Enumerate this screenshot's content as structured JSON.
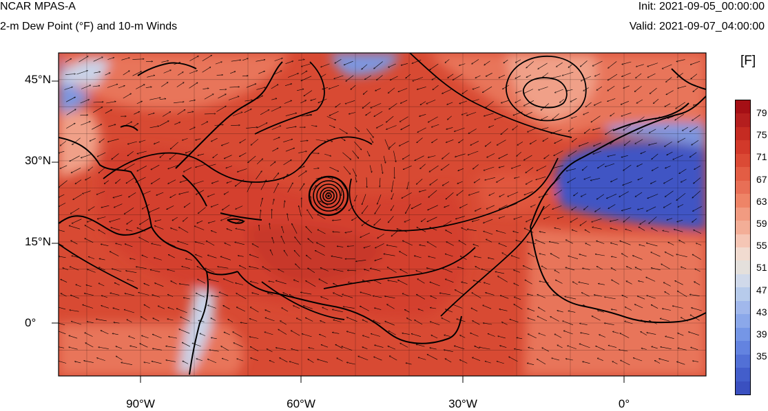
{
  "header": {
    "title": "NCAR MPAS-A",
    "subtitle": "2-m Dew Point (°F) and 10-m Winds",
    "init": "Init: 2021-09-05_00:00:00",
    "valid": "Valid: 2021-09-07_04:00:00"
  },
  "axes": {
    "lat_labels": [
      "45°N",
      "30°N",
      "15°N",
      "0°"
    ],
    "lon_labels": [
      "90°W",
      "60°W",
      "30°W",
      "0°"
    ]
  },
  "colorbar": {
    "units": "[F]",
    "tick_labels": [
      "79",
      "75",
      "71",
      "67",
      "63",
      "59",
      "55",
      "51",
      "47",
      "43",
      "39",
      "35"
    ],
    "colors": [
      "#a50f15",
      "#b41e1e",
      "#c52b22",
      "#d2392a",
      "#db4a35",
      "#e35d44",
      "#e86f56",
      "#ee8467",
      "#f19b81",
      "#f3ae97",
      "#f5c6b5",
      "#f1dbd0",
      "#e4e0dc",
      "#d0d9ea",
      "#b7cbeb",
      "#a1b8ec",
      "#8ba8ea",
      "#7596e6",
      "#6383e0",
      "#5270d6",
      "#435ecb",
      "#3a50c0"
    ]
  },
  "palette": {
    "moist": "#d4412e",
    "moist2": "#e0563d",
    "warm": "#e8745a",
    "mild": "#f0a088",
    "cool": "#c9d3e8",
    "dry": "#7d97e0",
    "verydry": "#3f55c4"
  }
}
